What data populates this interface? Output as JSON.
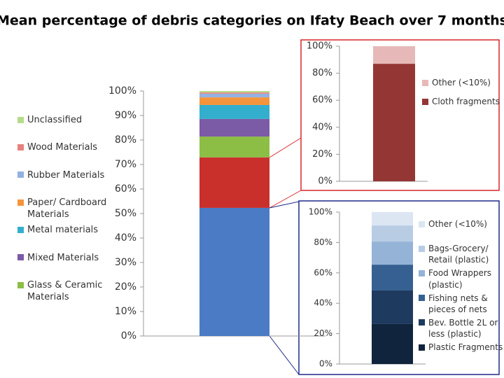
{
  "chart_data": [
    {
      "type": "bar",
      "stacked": true,
      "title": "Mean percentage of debris categories on Ifaty Beach over 7 months",
      "categories": [
        null
      ],
      "ylim": [
        0,
        100
      ],
      "yticks": [
        {
          "value": 0,
          "label": "0%"
        },
        {
          "value": 10,
          "label": "10%"
        },
        {
          "value": 20,
          "label": "20%"
        },
        {
          "value": 30,
          "label": "30%"
        },
        {
          "value": 40,
          "label": "40%"
        },
        {
          "value": 50,
          "label": "50%"
        },
        {
          "value": 60,
          "label": "60%"
        },
        {
          "value": 70,
          "label": "70%"
        },
        {
          "value": 80,
          "label": "80%"
        },
        {
          "value": 90,
          "label": "90%"
        },
        {
          "value": 100,
          "label": "100%"
        }
      ],
      "series": [
        {
          "color": "#4a7bc4",
          "values": [
            52.3
          ]
        },
        {
          "color": "#c9302c",
          "values": [
            20.6
          ]
        },
        {
          "name": "Glass & Ceramic Materials",
          "color": "#8cbd45",
          "values": [
            8.5
          ]
        },
        {
          "name": "Mixed Materials",
          "color": "#7b5aa6",
          "values": [
            7.2
          ]
        },
        {
          "name": "Metal materials",
          "color": "#34aecd",
          "values": [
            5.7
          ]
        },
        {
          "name": "Paper/ Cardboard Materials",
          "color": "#f5943a",
          "values": [
            3.1
          ]
        },
        {
          "name": "Rubber Materials",
          "color": "#93b1e2",
          "values": [
            1.5
          ]
        },
        {
          "name": "Wood Materials",
          "color": "#e8817c",
          "values": [
            0.5
          ]
        },
        {
          "name": "Unclassified",
          "color": "#b6dc8a",
          "values": [
            0.6
          ]
        }
      ]
    },
    {
      "type": "bar",
      "stacked": true,
      "categories": [
        null
      ],
      "ylim": [
        0,
        100
      ],
      "yticks": [
        {
          "value": 0,
          "label": "0%"
        },
        {
          "value": 20,
          "label": "20%"
        },
        {
          "value": 40,
          "label": "40%"
        },
        {
          "value": 60,
          "label": "60%"
        },
        {
          "value": 80,
          "label": "80%"
        },
        {
          "value": 100,
          "label": "100%"
        }
      ],
      "series": [
        {
          "name": "Cloth fragments",
          "color": "#943634",
          "values": [
            87
          ]
        },
        {
          "name": "Other (<10%)",
          "color": "#e6b9b8",
          "values": [
            13
          ]
        }
      ]
    },
    {
      "type": "bar",
      "stacked": true,
      "categories": [
        null
      ],
      "ylim": [
        0,
        100
      ],
      "yticks": [
        {
          "value": 0,
          "label": "0%"
        },
        {
          "value": 20,
          "label": "20%"
        },
        {
          "value": 40,
          "label": "40%"
        },
        {
          "value": 60,
          "label": "60%"
        },
        {
          "value": 80,
          "label": "80%"
        },
        {
          "value": 100,
          "label": "100%"
        }
      ],
      "series": [
        {
          "name": "Plastic Fragments",
          "color": "#10243e",
          "values": [
            26.3
          ]
        },
        {
          "name": "Bev. Bottle 2L or less (plastic)",
          "color": "#1f3a5f",
          "values": [
            22.1
          ]
        },
        {
          "name": "Fishing nets & pieces of nets",
          "color": "#366092",
          "values": [
            17
          ]
        },
        {
          "name": "Food Wrappers (plastic)",
          "color": "#95b3d7",
          "values": [
            15.2
          ]
        },
        {
          "name": "Bags-Grocery/ Retail (plastic)",
          "color": "#b8cce4",
          "values": [
            10.6
          ]
        },
        {
          "name": "Other (<10%)",
          "color": "#dce6f2",
          "values": [
            8.8
          ]
        }
      ]
    }
  ]
}
